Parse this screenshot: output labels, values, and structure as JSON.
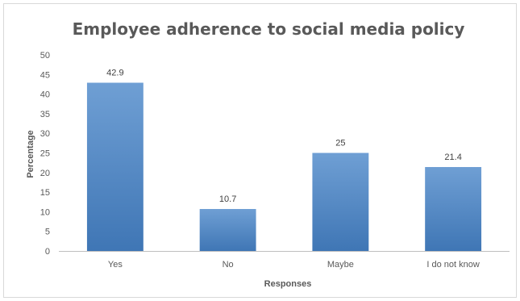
{
  "chart_data": {
    "type": "bar",
    "title": "Employee adherence to social media policy",
    "xlabel": "Responses",
    "ylabel": "Percentage",
    "categories": [
      "Yes",
      "No",
      "Maybe",
      "I do not know"
    ],
    "values": [
      42.9,
      10.7,
      25,
      21.4
    ],
    "data_labels": [
      "42.9",
      "10.7",
      "25",
      "21.4"
    ],
    "ylim": [
      0,
      50
    ],
    "yticks": [
      0,
      5,
      10,
      15,
      20,
      25,
      30,
      35,
      40,
      45,
      50
    ],
    "grid": false,
    "legend": "none",
    "colors": {
      "bar_top": "#6f9fd4",
      "bar_bottom": "#3f76b5",
      "axis": "#bfbfbf",
      "text": "#595959"
    }
  }
}
